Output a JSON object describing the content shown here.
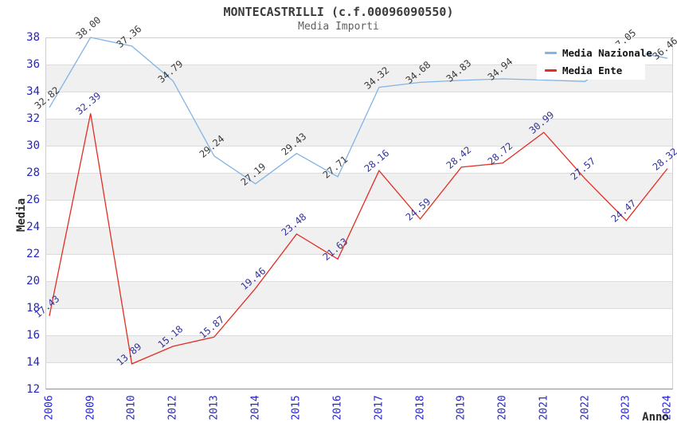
{
  "chart": {
    "title": "MONTECASTRILLI (c.f.00096090550)",
    "subtitle": "Media Importi",
    "xlabel": "Anno",
    "ylabel": "Media"
  },
  "legend": {
    "items": [
      {
        "label": "Media Nazionale",
        "color": "#82b4e6"
      },
      {
        "label": "Media Ente",
        "color": "#e12e24"
      }
    ]
  },
  "colors": {
    "tick_label": "#2424cc",
    "band_gray": "#f0f0f0",
    "gridline": "#dcdcdc",
    "nazionale_label": "#3a3a3a",
    "ente_label": "#333399"
  },
  "chart_data": {
    "type": "line",
    "title": "MONTECASTRILLI (c.f.00096090550)",
    "subtitle": "Media Importi",
    "xlabel": "Anno",
    "ylabel": "Media",
    "ylim": [
      12,
      38
    ],
    "ytick_step": 2,
    "grid": "horizontal-bands",
    "legend_position": "top-right",
    "categories": [
      "2006",
      "2009",
      "2010",
      "2012",
      "2013",
      "2014",
      "2015",
      "2016",
      "2017",
      "2018",
      "2019",
      "2020",
      "2021",
      "2022",
      "2023",
      "2024"
    ],
    "series": [
      {
        "name": "Media Nazionale",
        "color": "#82b4e6",
        "label_color": "#3a3a3a",
        "values": [
          32.82,
          38.0,
          37.36,
          34.79,
          29.24,
          27.19,
          29.43,
          27.71,
          34.32,
          34.68,
          34.83,
          34.94,
          34.85,
          34.75,
          37.05,
          36.46
        ],
        "labels": [
          "32.82",
          "38.00",
          "37.36",
          "34.79",
          "29.24",
          "27.19",
          "29.43",
          "27.71",
          "34.32",
          "34.68",
          "34.83",
          "34.94",
          null,
          null,
          "37.05",
          "36.46"
        ]
      },
      {
        "name": "Media Ente",
        "color": "#e12e24",
        "label_color": "#333399",
        "values": [
          17.43,
          32.39,
          13.89,
          15.18,
          15.87,
          19.46,
          23.48,
          21.63,
          28.16,
          24.59,
          28.42,
          28.72,
          30.99,
          27.57,
          24.47,
          28.32
        ],
        "labels": [
          "17.43",
          "32.39",
          "13.89",
          "15.18",
          "15.87",
          "19.46",
          "23.48",
          "21.63",
          "28.16",
          "24.59",
          "28.42",
          "28.72",
          "30.99",
          "27.57",
          "24.47",
          "28.32"
        ]
      }
    ]
  }
}
